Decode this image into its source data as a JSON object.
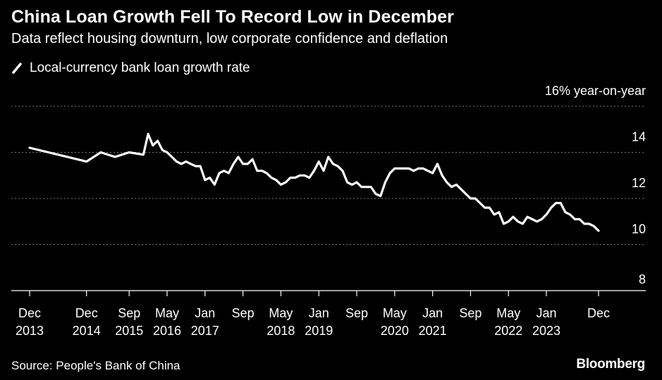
{
  "title": "China Loan Growth Fell To Record Low in December",
  "subtitle": "Data reflect housing downturn, low corporate confidence and deflation",
  "legend": {
    "label": "Local-currency bank loan growth rate"
  },
  "source": "Source: People's Bank of China",
  "brand": "Bloomberg",
  "colors": {
    "background": "#000000",
    "line": "#ffffff",
    "grid": "#7a7a7a"
  },
  "chart_data": {
    "type": "line",
    "title": "China Loan Growth Fell To Record Low in December",
    "subtitle": "Data reflect housing downturn, low corporate confidence and deflation",
    "ylabel": "16% year-on-year",
    "ylim": [
      8,
      16
    ],
    "yticks": [
      8,
      10,
      12,
      14,
      16
    ],
    "ytick_labels": [
      "8",
      "10",
      "12",
      "14",
      "16% year-on-year"
    ],
    "xlim": [
      "2013-12",
      "2023-12"
    ],
    "xticks": [
      {
        "date": "2013-12",
        "label": [
          "Dec",
          "2013"
        ]
      },
      {
        "date": "2014-12",
        "label": [
          "Dec",
          "2014"
        ]
      },
      {
        "date": "2015-09",
        "label": [
          "Sep",
          "2015"
        ]
      },
      {
        "date": "2016-05",
        "label": [
          "May",
          "2016"
        ]
      },
      {
        "date": "2017-01",
        "label": [
          "Jan",
          "2017"
        ]
      },
      {
        "date": "2017-09",
        "label": [
          "Sep",
          ""
        ]
      },
      {
        "date": "2018-05",
        "label": [
          "May",
          "2018"
        ]
      },
      {
        "date": "2019-01",
        "label": [
          "Jan",
          "2019"
        ]
      },
      {
        "date": "2019-09",
        "label": [
          "Sep",
          ""
        ]
      },
      {
        "date": "2020-05",
        "label": [
          "May",
          "2020"
        ]
      },
      {
        "date": "2021-01",
        "label": [
          "Jan",
          "2021"
        ]
      },
      {
        "date": "2021-09",
        "label": [
          "Sep",
          ""
        ]
      },
      {
        "date": "2022-05",
        "label": [
          "May",
          "2022"
        ]
      },
      {
        "date": "2023-01",
        "label": [
          "Jan",
          "2023"
        ]
      },
      {
        "date": "2023-12",
        "label": [
          "Dec",
          ""
        ]
      }
    ],
    "grid": true,
    "legend_position": "top-left",
    "series": [
      {
        "name": "Local-currency bank loan growth rate",
        "points": [
          [
            "2013-12",
            14.2
          ],
          [
            "2014-12",
            13.6
          ],
          [
            "2015-03",
            14.0
          ],
          [
            "2015-06",
            13.8
          ],
          [
            "2015-09",
            14.0
          ],
          [
            "2015-12",
            13.9
          ],
          [
            "2016-01",
            14.8
          ],
          [
            "2016-02",
            14.3
          ],
          [
            "2016-03",
            14.5
          ],
          [
            "2016-04",
            14.1
          ],
          [
            "2016-05",
            14.0
          ],
          [
            "2016-06",
            13.8
          ],
          [
            "2016-07",
            13.6
          ],
          [
            "2016-08",
            13.5
          ],
          [
            "2016-09",
            13.6
          ],
          [
            "2016-10",
            13.5
          ],
          [
            "2016-11",
            13.4
          ],
          [
            "2016-12",
            13.4
          ],
          [
            "2017-01",
            12.8
          ],
          [
            "2017-02",
            12.9
          ],
          [
            "2017-03",
            12.6
          ],
          [
            "2017-04",
            13.1
          ],
          [
            "2017-05",
            13.2
          ],
          [
            "2017-06",
            13.1
          ],
          [
            "2017-07",
            13.5
          ],
          [
            "2017-08",
            13.8
          ],
          [
            "2017-09",
            13.5
          ],
          [
            "2017-10",
            13.5
          ],
          [
            "2017-11",
            13.7
          ],
          [
            "2017-12",
            13.2
          ],
          [
            "2018-01",
            13.2
          ],
          [
            "2018-02",
            13.1
          ],
          [
            "2018-03",
            12.9
          ],
          [
            "2018-04",
            12.8
          ],
          [
            "2018-05",
            12.6
          ],
          [
            "2018-06",
            12.7
          ],
          [
            "2018-07",
            12.9
          ],
          [
            "2018-08",
            12.9
          ],
          [
            "2018-09",
            13.0
          ],
          [
            "2018-10",
            13.0
          ],
          [
            "2018-11",
            12.9
          ],
          [
            "2018-12",
            13.2
          ],
          [
            "2019-01",
            13.6
          ],
          [
            "2019-02",
            13.2
          ],
          [
            "2019-03",
            13.8
          ],
          [
            "2019-04",
            13.5
          ],
          [
            "2019-05",
            13.4
          ],
          [
            "2019-06",
            13.2
          ],
          [
            "2019-07",
            12.7
          ],
          [
            "2019-08",
            12.6
          ],
          [
            "2019-09",
            12.7
          ],
          [
            "2019-10",
            12.5
          ],
          [
            "2019-11",
            12.5
          ],
          [
            "2019-12",
            12.5
          ],
          [
            "2020-01",
            12.2
          ],
          [
            "2020-02",
            12.1
          ],
          [
            "2020-03",
            12.7
          ],
          [
            "2020-04",
            13.1
          ],
          [
            "2020-05",
            13.3
          ],
          [
            "2020-06",
            13.3
          ],
          [
            "2020-07",
            13.3
          ],
          [
            "2020-08",
            13.3
          ],
          [
            "2020-09",
            13.2
          ],
          [
            "2020-10",
            13.3
          ],
          [
            "2020-11",
            13.3
          ],
          [
            "2020-12",
            13.2
          ],
          [
            "2021-01",
            13.1
          ],
          [
            "2021-02",
            13.5
          ],
          [
            "2021-03",
            13.0
          ],
          [
            "2021-04",
            12.7
          ],
          [
            "2021-05",
            12.5
          ],
          [
            "2021-06",
            12.6
          ],
          [
            "2021-07",
            12.4
          ],
          [
            "2021-08",
            12.2
          ],
          [
            "2021-09",
            12.0
          ],
          [
            "2021-10",
            12.0
          ],
          [
            "2021-11",
            11.8
          ],
          [
            "2021-12",
            11.6
          ],
          [
            "2022-01",
            11.6
          ],
          [
            "2022-02",
            11.3
          ],
          [
            "2022-03",
            11.4
          ],
          [
            "2022-04",
            10.9
          ],
          [
            "2022-05",
            11.0
          ],
          [
            "2022-06",
            11.2
          ],
          [
            "2022-07",
            11.0
          ],
          [
            "2022-08",
            10.9
          ],
          [
            "2022-09",
            11.2
          ],
          [
            "2022-10",
            11.1
          ],
          [
            "2022-11",
            11.0
          ],
          [
            "2022-12",
            11.1
          ],
          [
            "2023-01",
            11.3
          ],
          [
            "2023-02",
            11.6
          ],
          [
            "2023-03",
            11.8
          ],
          [
            "2023-04",
            11.8
          ],
          [
            "2023-05",
            11.4
          ],
          [
            "2023-06",
            11.3
          ],
          [
            "2023-07",
            11.1
          ],
          [
            "2023-08",
            11.1
          ],
          [
            "2023-09",
            10.9
          ],
          [
            "2023-10",
            10.9
          ],
          [
            "2023-11",
            10.8
          ],
          [
            "2023-12",
            10.6
          ]
        ]
      }
    ]
  }
}
